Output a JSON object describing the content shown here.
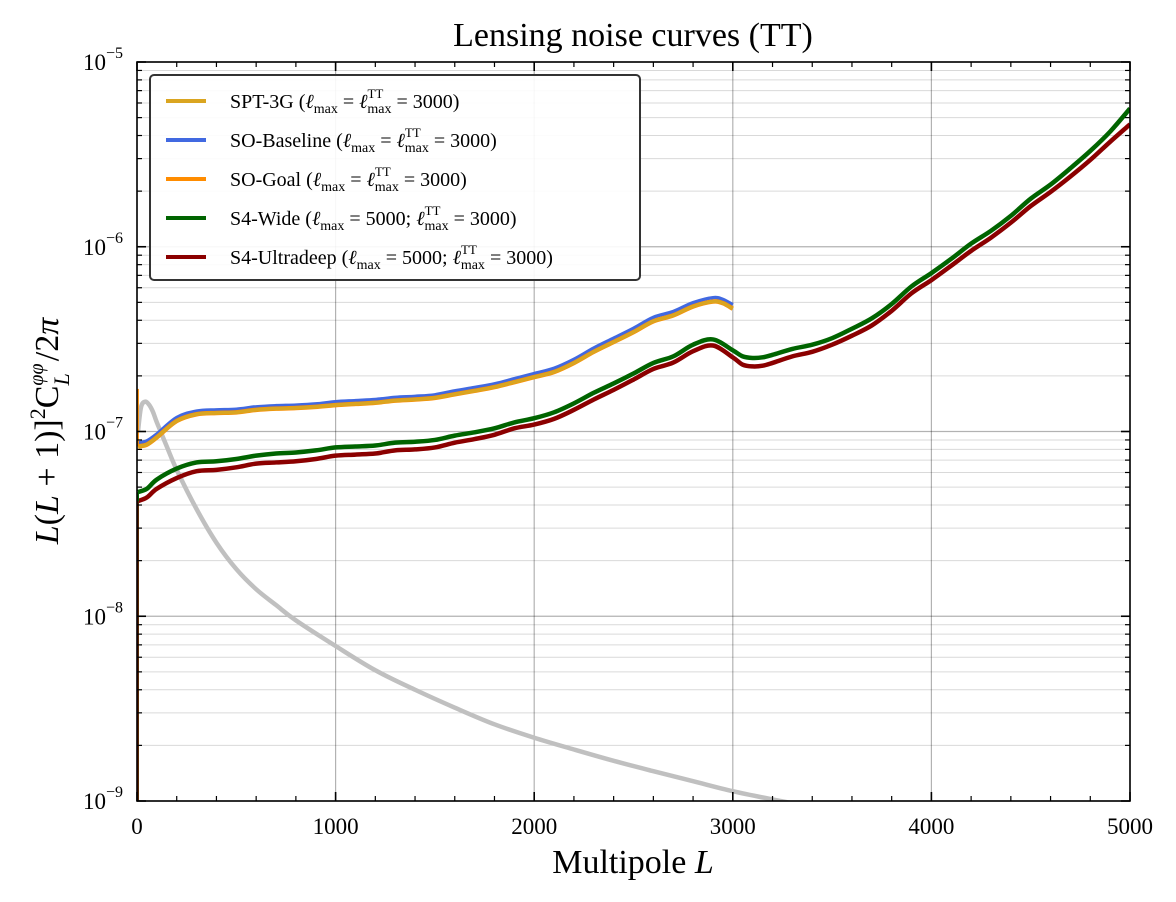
{
  "chart_data": {
    "type": "line",
    "title": "Lensing noise curves (TT)",
    "xlabel": "Multipole L",
    "ylabel": "L(L+1)]²C_L^φφ/2π",
    "xlim": [
      0,
      5000
    ],
    "ylim": [
      1e-09,
      1e-05
    ],
    "yscale": "log",
    "grid": true,
    "legend_position": "top-left",
    "x_ticks": [
      0,
      1000,
      2000,
      3000,
      4000,
      5000
    ],
    "x_tick_labels": [
      "0",
      "1000",
      "2000",
      "3000",
      "4000",
      "5000"
    ],
    "y_ticks": [
      1e-09,
      1e-08,
      1e-07,
      1e-06,
      1e-05
    ],
    "y_tick_labels": [
      {
        "base": "10",
        "exp": "−9"
      },
      {
        "base": "10",
        "exp": "−8"
      },
      {
        "base": "10",
        "exp": "−7"
      },
      {
        "base": "10",
        "exp": "−6"
      },
      {
        "base": "10",
        "exp": "−5"
      }
    ],
    "series": [
      {
        "name": "SPT-3G (ℓmax = ℓTTmax = 3000)",
        "legend": {
          "prefix": "SPT-3G (",
          "l1": "max",
          "mid": " = ",
          "l2sup": "TT",
          "l2sub": "max",
          "suffix": " = 3000)"
        },
        "color": "#DAA520",
        "width": 3.5,
        "in_legend": true,
        "x": [
          5,
          50,
          100,
          200,
          300,
          400,
          500,
          600,
          700,
          800,
          900,
          1000,
          1100,
          1200,
          1300,
          1400,
          1500,
          1600,
          1700,
          1800,
          1900,
          2000,
          2100,
          2200,
          2300,
          2400,
          2500,
          2600,
          2700,
          2800,
          2900,
          2950,
          3000
        ],
        "y": [
          8.3e-08,
          8.5e-08,
          9.3e-08,
          1.14e-07,
          1.24e-07,
          1.26e-07,
          1.27e-07,
          1.31e-07,
          1.33e-07,
          1.34e-07,
          1.36e-07,
          1.39e-07,
          1.41e-07,
          1.43e-07,
          1.47e-07,
          1.49e-07,
          1.52e-07,
          1.59e-07,
          1.66e-07,
          1.74e-07,
          1.85e-07,
          1.97e-07,
          2.1e-07,
          2.35e-07,
          2.7e-07,
          3.05e-07,
          3.45e-07,
          3.95e-07,
          4.25e-07,
          4.75e-07,
          5.05e-07,
          4.95e-07,
          4.62e-07
        ]
      },
      {
        "name": "SO-Baseline (ℓmax = ℓTTmax = 3000)",
        "legend": {
          "prefix": "SO-Baseline (",
          "l1": "max",
          "mid": " = ",
          "l2sup": "TT",
          "l2sub": "max",
          "suffix": " = 3000)"
        },
        "color": "#4169E1",
        "width": 3.5,
        "in_legend": true,
        "x": [
          5,
          50,
          100,
          200,
          300,
          400,
          500,
          600,
          700,
          800,
          900,
          1000,
          1100,
          1200,
          1300,
          1400,
          1500,
          1600,
          1700,
          1800,
          1900,
          2000,
          2100,
          2200,
          2300,
          2400,
          2500,
          2600,
          2700,
          2800,
          2900,
          2950,
          3000
        ],
        "y": [
          8.7e-08,
          8.9e-08,
          9.7e-08,
          1.19e-07,
          1.29e-07,
          1.31e-07,
          1.32e-07,
          1.36e-07,
          1.38e-07,
          1.39e-07,
          1.41e-07,
          1.45e-07,
          1.47e-07,
          1.49e-07,
          1.53e-07,
          1.55e-07,
          1.58e-07,
          1.66e-07,
          1.73e-07,
          1.81e-07,
          1.93e-07,
          2.06e-07,
          2.2e-07,
          2.46e-07,
          2.83e-07,
          3.2e-07,
          3.62e-07,
          4.15e-07,
          4.46e-07,
          4.98e-07,
          5.3e-07,
          5.19e-07,
          4.85e-07
        ]
      },
      {
        "name": "SO-Goal (ℓmax = ℓTTmax = 3000)",
        "legend": {
          "prefix": "SO-Goal (",
          "l1": "max",
          "mid": " = ",
          "l2sup": "TT",
          "l2sub": "max",
          "suffix": " = 3000)"
        },
        "color": "#FF8C00",
        "width": 4.5,
        "in_legend": true,
        "x": [
          5,
          50,
          100,
          200,
          300,
          400,
          500,
          600,
          700,
          800,
          900,
          1000,
          1100,
          1200,
          1300,
          1400,
          1500,
          1600,
          1700,
          1800,
          1900,
          2000,
          2100,
          2200,
          2300,
          2400,
          2500,
          2600,
          2700,
          2800,
          2900,
          2950,
          3000
        ],
        "y": [
          8.3e-08,
          8.5e-08,
          9.3e-08,
          1.14e-07,
          1.24e-07,
          1.26e-07,
          1.27e-07,
          1.31e-07,
          1.33e-07,
          1.34e-07,
          1.36e-07,
          1.39e-07,
          1.41e-07,
          1.43e-07,
          1.47e-07,
          1.49e-07,
          1.52e-07,
          1.59e-07,
          1.66e-07,
          1.74e-07,
          1.85e-07,
          1.97e-07,
          2.1e-07,
          2.35e-07,
          2.7e-07,
          3.05e-07,
          3.45e-07,
          3.95e-07,
          4.25e-07,
          4.75e-07,
          5.05e-07,
          4.95e-07,
          4.62e-07
        ]
      },
      {
        "name": "S4-Wide (ℓmax = 5000; ℓTTmax = 3000)",
        "legend": {
          "prefix": "S4-Wide (",
          "l1": "max",
          "mid": " = 5000; ",
          "l2sup": "TT",
          "l2sub": "max",
          "suffix": " = 3000)"
        },
        "color": "#006400",
        "width": 4.5,
        "in_legend": true,
        "x": [
          5,
          50,
          100,
          200,
          300,
          400,
          500,
          600,
          700,
          800,
          900,
          1000,
          1100,
          1200,
          1300,
          1400,
          1500,
          1600,
          1700,
          1800,
          1900,
          2000,
          2100,
          2200,
          2300,
          2400,
          2500,
          2600,
          2700,
          2800,
          2900,
          3000,
          3050,
          3100,
          3150,
          3200,
          3300,
          3400,
          3500,
          3600,
          3700,
          3800,
          3900,
          4000,
          4100,
          4200,
          4300,
          4400,
          4500,
          4600,
          4700,
          4800,
          4900,
          5000
        ],
        "y": [
          4.7e-08,
          4.9e-08,
          5.5e-08,
          6.3e-08,
          6.8e-08,
          6.9e-08,
          7.1e-08,
          7.4e-08,
          7.6e-08,
          7.7e-08,
          7.9e-08,
          8.2e-08,
          8.3e-08,
          8.4e-08,
          8.7e-08,
          8.8e-08,
          9e-08,
          9.5e-08,
          9.9e-08,
          1.04e-07,
          1.12e-07,
          1.18e-07,
          1.27e-07,
          1.42e-07,
          1.62e-07,
          1.82e-07,
          2.06e-07,
          2.35e-07,
          2.55e-07,
          2.95e-07,
          3.15e-07,
          2.75e-07,
          2.55e-07,
          2.5e-07,
          2.52e-07,
          2.6e-07,
          2.8e-07,
          2.95e-07,
          3.2e-07,
          3.6e-07,
          4.1e-07,
          4.9e-07,
          6.1e-07,
          7.2e-07,
          8.6e-07,
          1.04e-06,
          1.22e-06,
          1.47e-06,
          1.82e-06,
          2.17e-06,
          2.66e-06,
          3.3e-06,
          4.2e-06,
          5.6e-06
        ]
      },
      {
        "name": "S4-Ultradeep (ℓmax = 5000; ℓTTmax = 3000)",
        "legend": {
          "prefix": "S4-Ultradeep (",
          "l1": "max",
          "mid": " = 5000; ",
          "l2sup": "TT",
          "l2sub": "max",
          "suffix": " = 3000)"
        },
        "color": "#8B0000",
        "width": 4.5,
        "in_legend": true,
        "x": [
          5,
          50,
          100,
          200,
          300,
          400,
          500,
          600,
          700,
          800,
          900,
          1000,
          1100,
          1200,
          1300,
          1400,
          1500,
          1600,
          1700,
          1800,
          1900,
          2000,
          2100,
          2200,
          2300,
          2400,
          2500,
          2600,
          2700,
          2800,
          2900,
          3000,
          3050,
          3100,
          3150,
          3200,
          3300,
          3400,
          3500,
          3600,
          3700,
          3800,
          3900,
          4000,
          4100,
          4200,
          4300,
          4400,
          4500,
          4600,
          4700,
          4800,
          4900,
          5000
        ],
        "y": [
          4.2e-08,
          4.4e-08,
          4.9e-08,
          5.6e-08,
          6.1e-08,
          6.2e-08,
          6.4e-08,
          6.7e-08,
          6.8e-08,
          6.9e-08,
          7.1e-08,
          7.4e-08,
          7.5e-08,
          7.6e-08,
          7.9e-08,
          8e-08,
          8.2e-08,
          8.7e-08,
          9.1e-08,
          9.6e-08,
          1.04e-07,
          1.09e-07,
          1.17e-07,
          1.31e-07,
          1.49e-07,
          1.68e-07,
          1.91e-07,
          2.18e-07,
          2.36e-07,
          2.72e-07,
          2.92e-07,
          2.52e-07,
          2.3e-07,
          2.25e-07,
          2.27e-07,
          2.35e-07,
          2.55e-07,
          2.7e-07,
          2.95e-07,
          3.3e-07,
          3.75e-07,
          4.5e-07,
          5.6e-07,
          6.6e-07,
          7.9e-07,
          9.5e-07,
          1.12e-06,
          1.35e-06,
          1.66e-06,
          1.98e-06,
          2.4e-06,
          2.95e-06,
          3.7e-06,
          4.6e-06
        ]
      },
      {
        "name": "",
        "color": "#C0C0C0",
        "width": 4.5,
        "in_legend": false,
        "x": [
          5,
          20,
          40,
          60,
          80,
          100,
          150,
          200,
          300,
          400,
          500,
          600,
          700,
          800,
          1000,
          1200,
          1400,
          1600,
          1800,
          2000,
          2200,
          2400,
          2600,
          2800,
          3000,
          3200,
          3400
        ],
        "y": [
          1e-07,
          1.35e-07,
          1.45e-07,
          1.4e-07,
          1.28e-07,
          1.12e-07,
          8.3e-08,
          6.2e-08,
          3.8e-08,
          2.5e-08,
          1.8e-08,
          1.4e-08,
          1.15e-08,
          9.5e-09,
          6.9e-09,
          5.1e-09,
          4e-09,
          3.2e-09,
          2.6e-09,
          2.2e-09,
          1.9e-09,
          1.65e-09,
          1.45e-09,
          1.28e-09,
          1.13e-09,
          1.02e-09,
          9.3e-10
        ]
      }
    ]
  }
}
